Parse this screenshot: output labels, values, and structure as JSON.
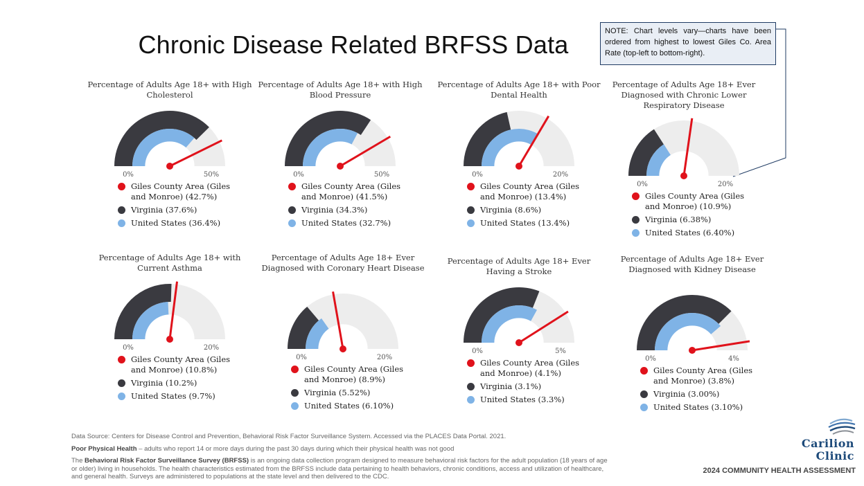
{
  "title": "Chronic Disease Related BRFSS Data",
  "note": "NOTE: Chart levels vary—charts have been ordered from highest to lowest Giles Co. Area Rate (top-left to bottom-right).",
  "colors": {
    "giles": "#e0121b",
    "virginia": "#3a3a40",
    "us": "#7fb3e6",
    "track": "#ededed",
    "note_border": "#1f3b63"
  },
  "chart_data": [
    {
      "type": "gauge",
      "title": "Percentage of Adults Age 18+ with High Cholesterol",
      "range": [
        0,
        50
      ],
      "tick_min": "0%",
      "tick_max": "50%",
      "giles": 42.7,
      "virginia": 37.6,
      "us": 36.4,
      "legend": [
        "Giles County Area (Giles and Monroe) (42.7%)",
        "Virginia (37.6%)",
        "United States (36.4%)"
      ]
    },
    {
      "type": "gauge",
      "title": "Percentage of Adults Age 18+ with High Blood Pressure",
      "range": [
        0,
        50
      ],
      "tick_min": "0%",
      "tick_max": "50%",
      "giles": 41.5,
      "virginia": 34.3,
      "us": 32.7,
      "legend": [
        "Giles County Area (Giles and Monroe) (41.5%)",
        "Virginia (34.3%)",
        "United States (32.7%)"
      ]
    },
    {
      "type": "gauge",
      "title": "Percentage of Adults Age 18+ with Poor Dental Health",
      "range": [
        0,
        20
      ],
      "tick_min": "0%",
      "tick_max": "20%",
      "giles": 13.4,
      "virginia": 8.6,
      "us": 13.4,
      "legend": [
        "Giles County Area (Giles and Monroe) (13.4%)",
        "Virginia (8.6%)",
        "United States (13.4%)"
      ]
    },
    {
      "type": "gauge",
      "title": "Percentage of Adults Age 18+ Ever Diagnosed with Chronic Lower Respiratory Disease",
      "range": [
        0,
        20
      ],
      "tick_min": "0%",
      "tick_max": "20%",
      "giles": 10.9,
      "virginia": 6.38,
      "us": 6.4,
      "legend": [
        "Giles County Area (Giles and Monroe) (10.9%)",
        "Virginia (6.38%)",
        "United States (6.40%)"
      ]
    },
    {
      "type": "gauge",
      "title": "Percentage of Adults Age 18+ with Current Asthma",
      "range": [
        0,
        20
      ],
      "tick_min": "0%",
      "tick_max": "20%",
      "giles": 10.8,
      "virginia": 10.2,
      "us": 9.7,
      "legend": [
        "Giles County Area (Giles and Monroe) (10.8%)",
        "Virginia (10.2%)",
        "United States (9.7%)"
      ]
    },
    {
      "type": "gauge",
      "title": "Percentage of Adults Age 18+ Ever Diagnosed with Coronary Heart Disease",
      "range": [
        0,
        20
      ],
      "tick_min": "0%",
      "tick_max": "20%",
      "giles": 8.9,
      "virginia": 5.52,
      "us": 6.1,
      "legend": [
        "Giles County Area (Giles and Monroe) (8.9%)",
        "Virginia (5.52%)",
        "United States (6.10%)"
      ]
    },
    {
      "type": "gauge",
      "title": "Percentage of Adults Age 18+ Ever Having a Stroke",
      "range": [
        0,
        5
      ],
      "tick_min": "0%",
      "tick_max": "5%",
      "giles": 4.1,
      "virginia": 3.1,
      "us": 3.3,
      "legend": [
        "Giles County Area (Giles and Monroe) (4.1%)",
        "Virginia (3.1%)",
        "United States (3.3%)"
      ]
    },
    {
      "type": "gauge",
      "title": "Percentage of Adults Age 18+ Ever Diagnosed with Kidney Disease",
      "range": [
        0,
        4
      ],
      "tick_min": "0%",
      "tick_max": "4%",
      "giles": 3.8,
      "virginia": 3.0,
      "us": 3.1,
      "legend": [
        "Giles County Area (Giles and Monroe) (3.8%)",
        "Virginia (3.00%)",
        "United States (3.10%)"
      ]
    }
  ],
  "footer": {
    "source": "Data Source: Centers for Disease Control and Prevention, Behavioral Risk Factor Surveillance System. Accessed via the PLACES Data Portal. 2021.",
    "poor_health_term": "Poor Physical Health",
    "poor_health_def": " – adults who report 14 or more days during the past 30 days during which their physical health was not good",
    "brfss_pre": "The ",
    "brfss_term": "Behavioral Risk Factor Surveillance Survey (BRFSS)",
    "brfss_def": " is an ongoing data collection program designed to measure behavioral risk factors for the adult population (18 years of age or older) living in households. The health characteristics estimated from the BRFSS include data pertaining to health behaviors, chronic conditions, access and utilization of healthcare, and general health. Surveys are administered to populations at the state level and then delivered to the CDC."
  },
  "logo": {
    "line1": "Carilion",
    "line2": "Clinic"
  },
  "assessment": "2024 COMMUNITY HEALTH ASSESSMENT"
}
